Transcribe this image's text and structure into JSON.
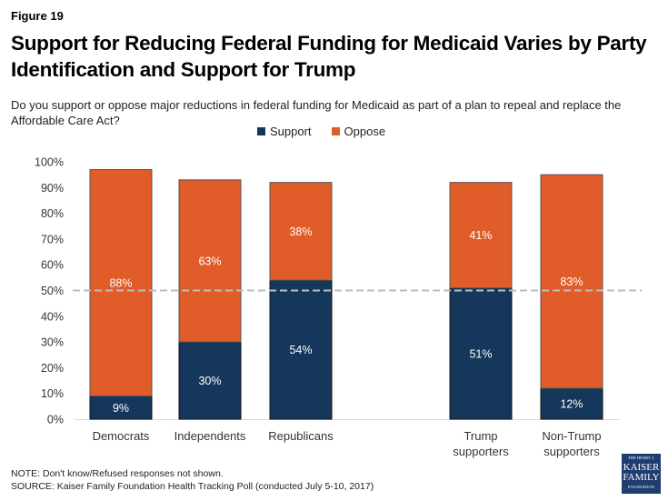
{
  "figure_label": "Figure 19",
  "chart_data": {
    "type": "bar",
    "stacked": true,
    "title": "Support for Reducing Federal Funding for Medicaid Varies by Party Identification and Support for Trump",
    "subtitle": "Do you support or oppose major reductions in federal funding for Medicaid as part of a plan to repeal and replace the Affordable Care Act?",
    "categories": [
      "Democrats",
      "Independents",
      "Republicans",
      "Trump supporters",
      "Non-Trump supporters"
    ],
    "category_lines": [
      [
        "Democrats"
      ],
      [
        "Independents"
      ],
      [
        "Republicans"
      ],
      [
        "Trump",
        "supporters"
      ],
      [
        "Non-Trump",
        "supporters"
      ]
    ],
    "series": [
      {
        "name": "Support",
        "color": "#15375c",
        "values": [
          9,
          30,
          54,
          51,
          12
        ],
        "labels": [
          "9%",
          "30%",
          "54%",
          "51%",
          "12%"
        ]
      },
      {
        "name": "Oppose",
        "color": "#e05c28",
        "values": [
          88,
          63,
          38,
          41,
          83
        ],
        "labels": [
          "88%",
          "63%",
          "38%",
          "41%",
          "83%"
        ]
      }
    ],
    "ylim": [
      0,
      100
    ],
    "yticks": [
      "0%",
      "10%",
      "20%",
      "30%",
      "40%",
      "50%",
      "60%",
      "70%",
      "80%",
      "90%",
      "100%"
    ],
    "reference_line": 50,
    "legend_position": "top-center",
    "grid": false
  },
  "notes": {
    "note": "NOTE: Don't know/Refused responses not shown.",
    "source": "SOURCE: Kaiser Family Foundation Health Tracking Poll (conducted July 5-10, 2017)"
  },
  "logo": {
    "line1": "THE HENRY J.",
    "line2": "KAISER",
    "line3": "FAMILY",
    "line4": "FOUNDATION"
  }
}
